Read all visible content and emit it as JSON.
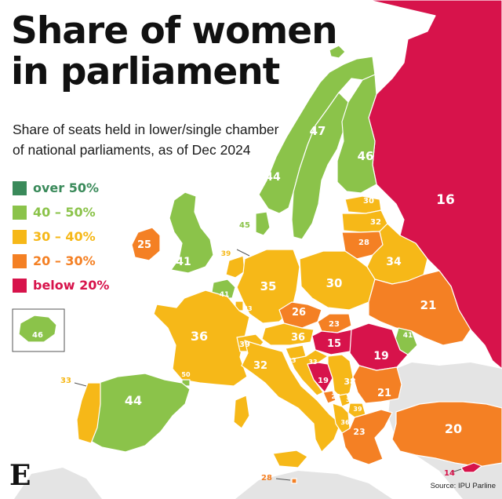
{
  "title": [
    "Share of women",
    "in parliament"
  ],
  "subtitle": [
    "Share of seats held in lower/single chamber",
    "of national parliaments, as of Dec 2024"
  ],
  "source": "Source: IPU Parline",
  "logo": "E",
  "legend": [
    {
      "label": "over 50%",
      "color": "#3a8a5a"
    },
    {
      "label": "40 – 50%",
      "color": "#8bc34a"
    },
    {
      "label": "30 – 40%",
      "color": "#f6b818"
    },
    {
      "label": "20 – 30%",
      "color": "#f48024"
    },
    {
      "label": "below 20%",
      "color": "#d7134b"
    }
  ],
  "colors": {
    "sea": "#ffffff",
    "non_europe": "#e4e4e4",
    "borders": "#ffffff",
    "label_dark": "#ffffff",
    "annotation": "#333333"
  },
  "countries": [
    {
      "name": "Russia",
      "value": 16,
      "category": 4
    },
    {
      "name": "Norway",
      "value": 47,
      "category": 1
    },
    {
      "name": "Sweden",
      "value": 44,
      "category": 1
    },
    {
      "name": "Finland",
      "value": 46,
      "category": 1
    },
    {
      "name": "Estonia",
      "value": 30,
      "category": 2
    },
    {
      "name": "Latvia",
      "value": 32,
      "category": 2
    },
    {
      "name": "Lithuania",
      "value": 28,
      "category": 3
    },
    {
      "name": "Belarus",
      "value": 34,
      "category": 2
    },
    {
      "name": "Denmark",
      "value": 45,
      "category": 1
    },
    {
      "name": "United Kingdom",
      "value": 41,
      "category": 1
    },
    {
      "name": "Ireland",
      "value": 25,
      "category": 3
    },
    {
      "name": "Iceland",
      "value": 46,
      "category": 1
    },
    {
      "name": "Netherlands",
      "value": 39,
      "category": 2
    },
    {
      "name": "Belgium",
      "value": 41,
      "category": 1
    },
    {
      "name": "Luxembourg",
      "value": 33,
      "category": 2
    },
    {
      "name": "Germany",
      "value": 35,
      "category": 2
    },
    {
      "name": "Poland",
      "value": 30,
      "category": 2
    },
    {
      "name": "Ukraine",
      "value": 21,
      "category": 3
    },
    {
      "name": "Czechia",
      "value": 26,
      "category": 3
    },
    {
      "name": "Slovakia",
      "value": 23,
      "category": 3
    },
    {
      "name": "Moldova",
      "value": 41,
      "category": 1
    },
    {
      "name": "France",
      "value": 36,
      "category": 2
    },
    {
      "name": "Switzerland",
      "value": 39,
      "category": 2
    },
    {
      "name": "Austria",
      "value": 36,
      "category": 2
    },
    {
      "name": "Hungary",
      "value": 15,
      "category": 4
    },
    {
      "name": "Romania",
      "value": 19,
      "category": 4
    },
    {
      "name": "Slovenia",
      "value": 33,
      "category": 2
    },
    {
      "name": "Croatia",
      "value": 33,
      "category": 2
    },
    {
      "name": "Italy",
      "value": 32,
      "category": 2
    },
    {
      "name": "Andorra",
      "value": 50,
      "category": 1
    },
    {
      "name": "Bosnia and Herzegovina",
      "value": 19,
      "category": 4
    },
    {
      "name": "Serbia",
      "value": 38,
      "category": 2
    },
    {
      "name": "Montenegro",
      "value": 27,
      "category": 3
    },
    {
      "name": "Kosovo",
      "value": 33,
      "category": 2
    },
    {
      "name": "North Macedonia",
      "value": 39,
      "category": 2
    },
    {
      "name": "Albania",
      "value": 36,
      "category": 2
    },
    {
      "name": "Bulgaria",
      "value": 21,
      "category": 3
    },
    {
      "name": "Greece",
      "value": 23,
      "category": 3
    },
    {
      "name": "Turkey",
      "value": 20,
      "category": 3
    },
    {
      "name": "Spain",
      "value": 44,
      "category": 1
    },
    {
      "name": "Portugal",
      "value": 33,
      "category": 2
    },
    {
      "name": "Malta",
      "value": 28,
      "category": 3
    },
    {
      "name": "Cyprus",
      "value": 14,
      "category": 4
    }
  ]
}
